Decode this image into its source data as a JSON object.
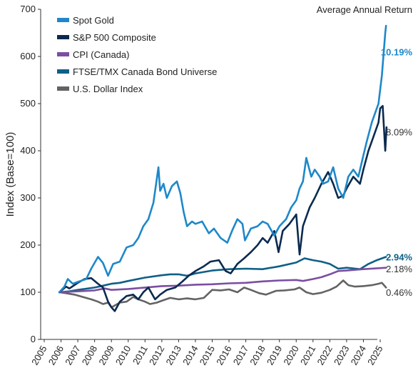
{
  "chart_data": {
    "type": "line",
    "ylabel": "Index (Base=100)",
    "ylim": [
      0,
      700
    ],
    "yticks": [
      "0",
      "100",
      "200",
      "300",
      "400",
      "500",
      "600",
      "700"
    ],
    "xlim": [
      2005,
      2025.6
    ],
    "xticks": [
      "2005",
      "2006",
      "2007",
      "2008",
      "2009",
      "2010",
      "2011",
      "2012",
      "2013",
      "2014",
      "2015",
      "2016",
      "2017",
      "2018",
      "2019",
      "2020",
      "2021",
      "2022",
      "2023",
      "2024",
      "2025"
    ],
    "grid": false,
    "legend_position": "top-left",
    "returns_title": "Average Annual Return",
    "series": [
      {
        "name": "Spot Gold",
        "color": "#1e88c8",
        "return": "10.19%",
        "return_y": 610,
        "return_bold": true,
        "points": [
          [
            2005.9,
            100
          ],
          [
            2006.2,
            112
          ],
          [
            2006.4,
            128
          ],
          [
            2006.7,
            118
          ],
          [
            2007.0,
            122
          ],
          [
            2007.5,
            128
          ],
          [
            2007.8,
            150
          ],
          [
            2008.2,
            175
          ],
          [
            2008.5,
            162
          ],
          [
            2008.8,
            135
          ],
          [
            2009.1,
            160
          ],
          [
            2009.5,
            165
          ],
          [
            2009.9,
            195
          ],
          [
            2010.3,
            200
          ],
          [
            2010.6,
            215
          ],
          [
            2010.9,
            240
          ],
          [
            2011.2,
            255
          ],
          [
            2011.5,
            290
          ],
          [
            2011.7,
            340
          ],
          [
            2011.8,
            365
          ],
          [
            2011.9,
            315
          ],
          [
            2012.1,
            330
          ],
          [
            2012.3,
            300
          ],
          [
            2012.6,
            325
          ],
          [
            2012.9,
            335
          ],
          [
            2013.1,
            310
          ],
          [
            2013.3,
            270
          ],
          [
            2013.5,
            240
          ],
          [
            2013.8,
            250
          ],
          [
            2014.0,
            245
          ],
          [
            2014.4,
            250
          ],
          [
            2014.8,
            225
          ],
          [
            2015.1,
            235
          ],
          [
            2015.5,
            215
          ],
          [
            2015.9,
            205
          ],
          [
            2016.2,
            232
          ],
          [
            2016.5,
            255
          ],
          [
            2016.8,
            245
          ],
          [
            2016.95,
            210
          ],
          [
            2017.3,
            235
          ],
          [
            2017.7,
            240
          ],
          [
            2018.0,
            250
          ],
          [
            2018.3,
            245
          ],
          [
            2018.7,
            220
          ],
          [
            2019.0,
            240
          ],
          [
            2019.4,
            255
          ],
          [
            2019.7,
            280
          ],
          [
            2020.0,
            295
          ],
          [
            2020.2,
            320
          ],
          [
            2020.4,
            335
          ],
          [
            2020.6,
            385
          ],
          [
            2020.9,
            345
          ],
          [
            2021.1,
            360
          ],
          [
            2021.4,
            345
          ],
          [
            2021.6,
            330
          ],
          [
            2021.9,
            335
          ],
          [
            2022.2,
            365
          ],
          [
            2022.5,
            320
          ],
          [
            2022.8,
            300
          ],
          [
            2023.1,
            345
          ],
          [
            2023.4,
            360
          ],
          [
            2023.7,
            345
          ],
          [
            2024.0,
            390
          ],
          [
            2024.2,
            420
          ],
          [
            2024.5,
            460
          ],
          [
            2024.7,
            480
          ],
          [
            2024.9,
            500
          ],
          [
            2025.1,
            560
          ],
          [
            2025.3,
            650
          ],
          [
            2025.35,
            665
          ]
        ]
      },
      {
        "name": "S&P 500 Composite",
        "color": "#0b2a4f",
        "return": "8.09%",
        "return_y": 440,
        "return_bold": false,
        "points": [
          [
            2005.9,
            100
          ],
          [
            2006.3,
            112
          ],
          [
            2006.5,
            108
          ],
          [
            2007.0,
            120
          ],
          [
            2007.4,
            128
          ],
          [
            2007.8,
            130
          ],
          [
            2008.2,
            118
          ],
          [
            2008.5,
            110
          ],
          [
            2008.8,
            80
          ],
          [
            2009.0,
            68
          ],
          [
            2009.2,
            60
          ],
          [
            2009.5,
            80
          ],
          [
            2009.9,
            92
          ],
          [
            2010.3,
            95
          ],
          [
            2010.6,
            85
          ],
          [
            2010.9,
            100
          ],
          [
            2011.2,
            110
          ],
          [
            2011.6,
            85
          ],
          [
            2011.9,
            95
          ],
          [
            2012.3,
            105
          ],
          [
            2012.8,
            110
          ],
          [
            2013.2,
            122
          ],
          [
            2013.6,
            135
          ],
          [
            2014.0,
            145
          ],
          [
            2014.5,
            155
          ],
          [
            2014.9,
            165
          ],
          [
            2015.4,
            168
          ],
          [
            2015.8,
            145
          ],
          [
            2016.1,
            140
          ],
          [
            2016.5,
            160
          ],
          [
            2016.9,
            172
          ],
          [
            2017.3,
            185
          ],
          [
            2017.7,
            200
          ],
          [
            2018.0,
            215
          ],
          [
            2018.3,
            205
          ],
          [
            2018.7,
            230
          ],
          [
            2018.95,
            185
          ],
          [
            2019.2,
            230
          ],
          [
            2019.6,
            245
          ],
          [
            2020.0,
            265
          ],
          [
            2020.2,
            180
          ],
          [
            2020.4,
            240
          ],
          [
            2020.8,
            280
          ],
          [
            2021.1,
            300
          ],
          [
            2021.5,
            330
          ],
          [
            2021.9,
            355
          ],
          [
            2022.2,
            330
          ],
          [
            2022.5,
            300
          ],
          [
            2022.8,
            305
          ],
          [
            2023.0,
            320
          ],
          [
            2023.4,
            345
          ],
          [
            2023.8,
            330
          ],
          [
            2024.0,
            360
          ],
          [
            2024.3,
            400
          ],
          [
            2024.6,
            430
          ],
          [
            2024.9,
            460
          ],
          [
            2025.0,
            490
          ],
          [
            2025.15,
            495
          ],
          [
            2025.3,
            400
          ],
          [
            2025.38,
            450
          ]
        ]
      },
      {
        "name": "CPI (Canada)",
        "color": "#7b4fa0",
        "return": "2.18%",
        "return_y": 150,
        "return_bold": false,
        "points": [
          [
            2005.9,
            100
          ],
          [
            2007.0,
            102
          ],
          [
            2008.0,
            104
          ],
          [
            2008.6,
            108
          ],
          [
            2009.0,
            105
          ],
          [
            2010.0,
            107
          ],
          [
            2011.0,
            110
          ],
          [
            2012.0,
            113
          ],
          [
            2013.0,
            114
          ],
          [
            2014.0,
            116
          ],
          [
            2015.0,
            117
          ],
          [
            2016.0,
            119
          ],
          [
            2017.0,
            120
          ],
          [
            2018.0,
            123
          ],
          [
            2019.0,
            125
          ],
          [
            2020.0,
            126
          ],
          [
            2020.4,
            124
          ],
          [
            2021.0,
            128
          ],
          [
            2021.5,
            132
          ],
          [
            2022.0,
            138
          ],
          [
            2022.5,
            145
          ],
          [
            2023.0,
            146
          ],
          [
            2024.0,
            149
          ],
          [
            2025.35,
            152
          ]
        ]
      },
      {
        "name": "FTSE/TMX Canada Bond Universe",
        "color": "#0f5f87",
        "return": "2.94%",
        "return_y": 175,
        "return_bold": true,
        "points": [
          [
            2005.9,
            100
          ],
          [
            2006.5,
            102
          ],
          [
            2007.0,
            105
          ],
          [
            2008.0,
            110
          ],
          [
            2008.5,
            114
          ],
          [
            2009.0,
            118
          ],
          [
            2009.5,
            120
          ],
          [
            2010.0,
            124
          ],
          [
            2011.0,
            131
          ],
          [
            2012.0,
            136
          ],
          [
            2012.5,
            138
          ],
          [
            2013.0,
            138
          ],
          [
            2013.5,
            135
          ],
          [
            2014.0,
            140
          ],
          [
            2015.0,
            146
          ],
          [
            2016.0,
            149
          ],
          [
            2017.0,
            150
          ],
          [
            2018.0,
            149
          ],
          [
            2019.0,
            155
          ],
          [
            2020.0,
            163
          ],
          [
            2020.5,
            172
          ],
          [
            2021.0,
            168
          ],
          [
            2021.5,
            165
          ],
          [
            2022.0,
            160
          ],
          [
            2022.5,
            150
          ],
          [
            2023.0,
            152
          ],
          [
            2023.8,
            149
          ],
          [
            2024.3,
            160
          ],
          [
            2024.8,
            168
          ],
          [
            2025.35,
            175
          ]
        ]
      },
      {
        "name": "U.S. Dollar Index",
        "color": "#636363",
        "return": "0.46%",
        "return_y": 100,
        "return_bold": false,
        "points": [
          [
            2005.9,
            100
          ],
          [
            2006.3,
            98
          ],
          [
            2006.8,
            95
          ],
          [
            2007.3,
            90
          ],
          [
            2007.8,
            85
          ],
          [
            2008.2,
            80
          ],
          [
            2008.5,
            75
          ],
          [
            2008.8,
            78
          ],
          [
            2009.0,
            68
          ],
          [
            2009.2,
            72
          ],
          [
            2009.5,
            78
          ],
          [
            2009.9,
            80
          ],
          [
            2010.3,
            90
          ],
          [
            2010.6,
            85
          ],
          [
            2011.0,
            80
          ],
          [
            2011.3,
            75
          ],
          [
            2011.7,
            78
          ],
          [
            2012.0,
            82
          ],
          [
            2012.5,
            88
          ],
          [
            2013.0,
            85
          ],
          [
            2013.5,
            87
          ],
          [
            2014.0,
            85
          ],
          [
            2014.5,
            88
          ],
          [
            2015.0,
            105
          ],
          [
            2015.5,
            104
          ],
          [
            2016.0,
            106
          ],
          [
            2016.5,
            100
          ],
          [
            2016.9,
            110
          ],
          [
            2017.3,
            105
          ],
          [
            2017.8,
            98
          ],
          [
            2018.2,
            95
          ],
          [
            2018.8,
            103
          ],
          [
            2019.3,
            104
          ],
          [
            2019.9,
            106
          ],
          [
            2020.2,
            110
          ],
          [
            2020.6,
            100
          ],
          [
            2021.0,
            96
          ],
          [
            2021.5,
            99
          ],
          [
            2022.0,
            105
          ],
          [
            2022.4,
            112
          ],
          [
            2022.8,
            125
          ],
          [
            2023.1,
            115
          ],
          [
            2023.5,
            112
          ],
          [
            2024.0,
            113
          ],
          [
            2024.5,
            115
          ],
          [
            2024.9,
            118
          ],
          [
            2025.1,
            120
          ],
          [
            2025.35,
            110
          ]
        ]
      }
    ]
  }
}
